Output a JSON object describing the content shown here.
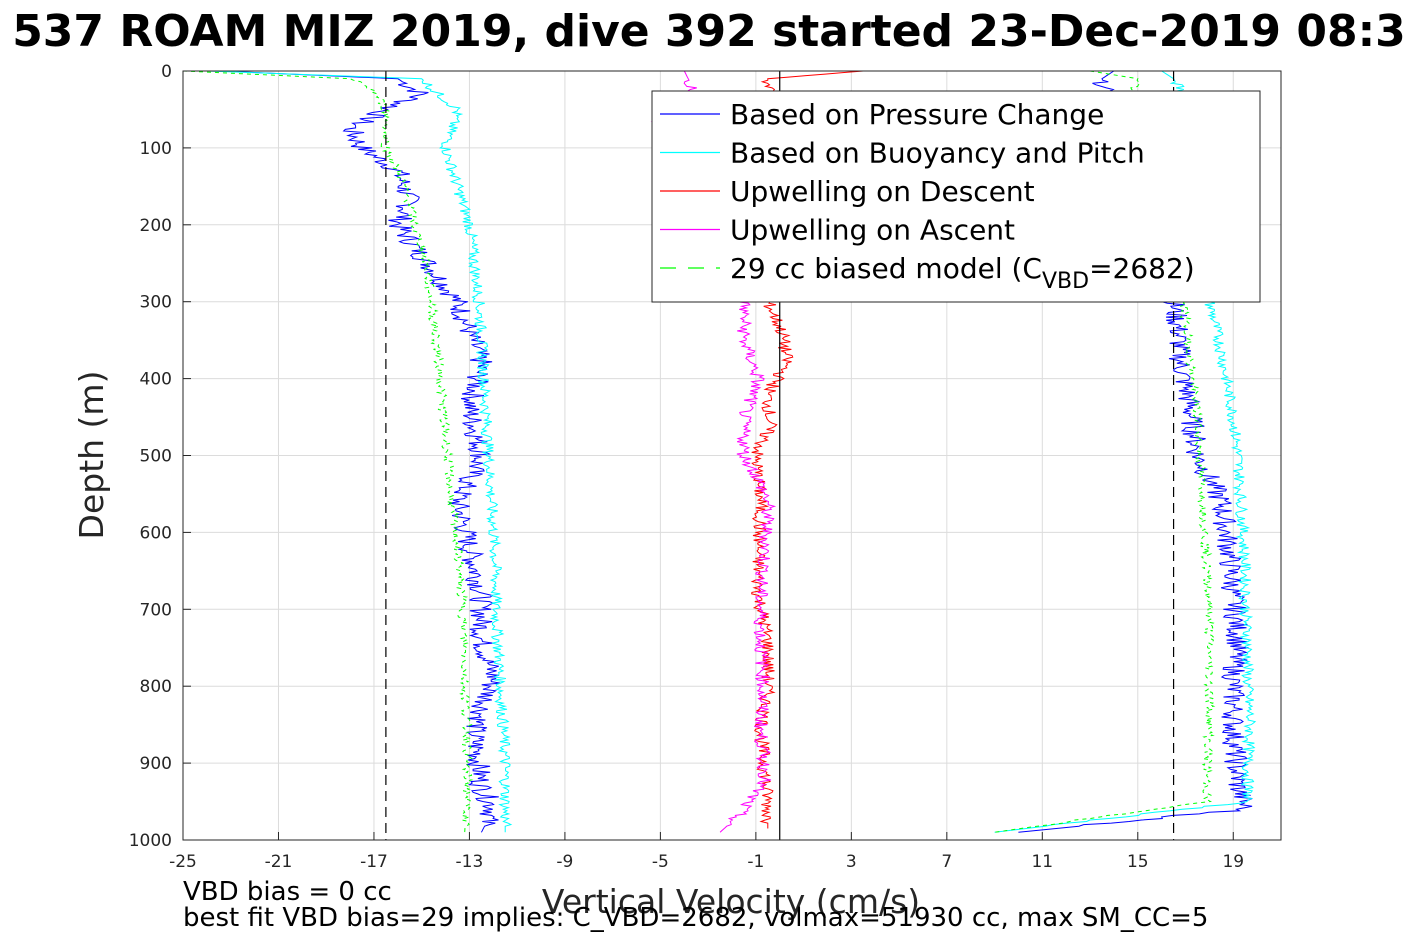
{
  "chart_data": {
    "type": "line",
    "title": "537 ROAM MIZ 2019, dive 392 started 23-Dec-2019 08:3",
    "xlabel": "Vertical Velocity (cm/s)",
    "ylabel": "Depth (m)",
    "xlim": [
      -25,
      21
    ],
    "ylim": [
      0,
      1000
    ],
    "y_reversed": true,
    "grid": true,
    "xticks": [
      "-25",
      "-21",
      "-17",
      "-13",
      "-9",
      "-5",
      "-1",
      "3",
      "7",
      "11",
      "15",
      "19"
    ],
    "yticks": [
      "0",
      "100",
      "200",
      "300",
      "400",
      "500",
      "600",
      "700",
      "800",
      "900",
      "1000"
    ],
    "legend": {
      "placement": "top-right",
      "entries": [
        {
          "label": "Based on Pressure Change",
          "color": "#0000ff",
          "style": "solid"
        },
        {
          "label": "Based on Buoyancy and Pitch",
          "color": "#00ffff",
          "style": "solid"
        },
        {
          "label": "Upwelling on Descent",
          "color": "#ff0000",
          "style": "solid"
        },
        {
          "label": "Upwelling on Ascent",
          "color": "#ff00ff",
          "style": "solid"
        },
        {
          "label_main": "29 cc biased model (C",
          "label_sub": "VBD",
          "label_tail": "=2682)",
          "color": "#00ff00",
          "style": "dashed"
        }
      ]
    },
    "reference_lines": [
      {
        "x": -16.5,
        "style": "dashed",
        "color": "#000000"
      },
      {
        "x": 0,
        "style": "solid",
        "color": "#000000"
      },
      {
        "x": 16.5,
        "style": "dashed",
        "color": "#000000"
      }
    ],
    "series": [
      {
        "name": "Based on Pressure Change",
        "color": "#0000ff",
        "jitter": 0.5,
        "depth": [
          0,
          10,
          30,
          50,
          75,
          100,
          130,
          170,
          200,
          260,
          300,
          340,
          380,
          440,
          500,
          560,
          620,
          680,
          740,
          790,
          860,
          930,
          960,
          990
        ],
        "descent": [
          -23.5,
          -16,
          -15,
          -16.5,
          -18,
          -17.5,
          -16,
          -15.5,
          -16,
          -14.5,
          -13.5,
          -13,
          -12.5,
          -13,
          -12.5,
          -13.5,
          -13,
          -12.5,
          -12.5,
          -12,
          -12.8,
          -12.5,
          -12,
          -12.5
        ],
        "ascent": [
          14,
          13.5,
          13.8,
          15,
          15,
          15.5,
          16.2,
          16.5,
          16.5,
          16.5,
          16.5,
          16.7,
          16.8,
          17.2,
          17.5,
          18.5,
          18.8,
          19,
          19.2,
          19,
          19,
          19.2,
          19.5,
          10
        ]
      },
      {
        "name": "Based on Buoyancy and Pitch",
        "color": "#00ffff",
        "jitter": 0.25,
        "depth": [
          0,
          10,
          25,
          50,
          100,
          150,
          200,
          250,
          300,
          350,
          400,
          450,
          500,
          550,
          600,
          650,
          700,
          750,
          800,
          850,
          900,
          950,
          990
        ],
        "descent": [
          -24,
          -15,
          -14.5,
          -13.5,
          -14,
          -13.5,
          -13,
          -12.8,
          -12.6,
          -12.5,
          -12.4,
          -12.3,
          -12.2,
          -12.1,
          -12,
          -11.9,
          -11.9,
          -11.8,
          -11.7,
          -11.6,
          -11.5,
          -11.5,
          -11.5
        ],
        "ascent": [
          16,
          16.5,
          16.8,
          17,
          17.2,
          17.4,
          17.6,
          17.8,
          18,
          18.4,
          18.7,
          19,
          19.2,
          19.3,
          19.4,
          19.5,
          19.5,
          19.6,
          19.6,
          19.7,
          19.6,
          19.6,
          9
        ]
      },
      {
        "name": "Upwelling on Descent",
        "color": "#ff0000",
        "jitter": 0.3,
        "depth": [
          0,
          10,
          300,
          340,
          380,
          420,
          460,
          500,
          560,
          620,
          680,
          740,
          800,
          860,
          920,
          960,
          985
        ],
        "descent": [
          3.5,
          -0.5,
          -0.5,
          0.1,
          0.3,
          -0.5,
          -0.4,
          -1,
          -0.8,
          -0.9,
          -0.9,
          -0.5,
          -0.5,
          -0.8,
          -0.6,
          -0.5,
          -0.5
        ],
        "ascent": []
      },
      {
        "name": "Upwelling on Ascent",
        "color": "#ff00ff",
        "jitter": 0.3,
        "depth": [
          0,
          30,
          60,
          75,
          300,
          350,
          400,
          450,
          500,
          530,
          560,
          620,
          680,
          740,
          790,
          860,
          920,
          970,
          990
        ],
        "descent": [],
        "ascent": [
          -4,
          -3.5,
          -5.5,
          -5,
          -1.5,
          -1.5,
          -0.9,
          -1.5,
          -1.5,
          -0.9,
          -0.5,
          -0.6,
          -0.8,
          -0.8,
          -0.7,
          -0.8,
          -0.6,
          -1.8,
          -2.5
        ]
      },
      {
        "name": "29 cc biased model (CVBD=2682)",
        "color": "#00ff00",
        "dashed": true,
        "jitter": 0.2,
        "depth": [
          0,
          10,
          25,
          50,
          100,
          150,
          200,
          250,
          300,
          350,
          400,
          450,
          500,
          550,
          600,
          650,
          700,
          750,
          800,
          850,
          900,
          950,
          990
        ],
        "descent": [
          -25,
          -18,
          -17,
          -16.5,
          -16.5,
          -15.7,
          -15.3,
          -14.8,
          -14.6,
          -14.4,
          -14.2,
          -14.1,
          -13.9,
          -13.8,
          -13.6,
          -13.4,
          -13.3,
          -13.2,
          -13.2,
          -13.1,
          -13.1,
          -13.1,
          -13.2
        ],
        "ascent": [
          13,
          15,
          14.8,
          15.5,
          16,
          16.3,
          16.5,
          16.7,
          16.9,
          17.1,
          17.3,
          17.5,
          17.6,
          17.7,
          17.8,
          17.9,
          18,
          18,
          18,
          18,
          17.9,
          17.9,
          9
        ]
      }
    ]
  },
  "notes": {
    "vbd_bias": "VBD bias = 0 cc",
    "best_fit": "best fit VBD bias=29 implies: C_VBD=2682, volmax=51930 cc, max SM_CC=5"
  }
}
